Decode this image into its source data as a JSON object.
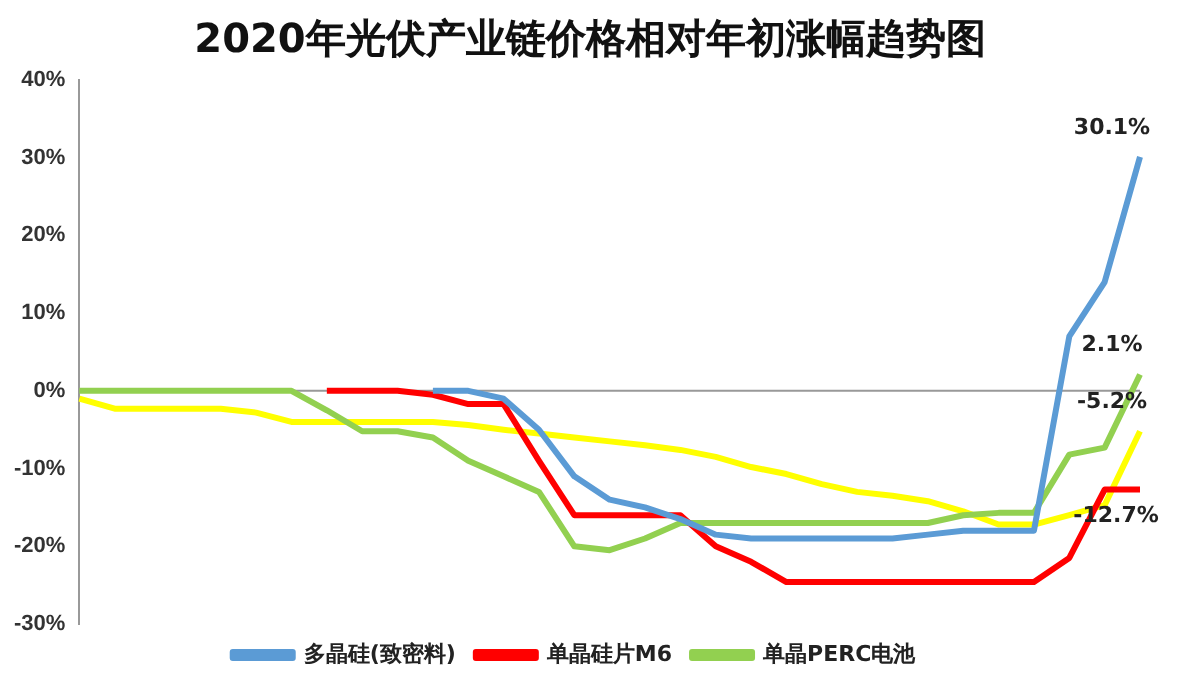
{
  "chart_data": {
    "type": "line",
    "title": "2020年光伏产业链价格相对年初涨幅趋势图",
    "categories": [
      null,
      null,
      null,
      null,
      null,
      null,
      null,
      null,
      null,
      null,
      null,
      null,
      null,
      null,
      null,
      null,
      null,
      null,
      null,
      null,
      null,
      null,
      null,
      null,
      null,
      null,
      null,
      null,
      null,
      null,
      null
    ],
    "series": [
      {
        "name": "多晶硅(致密料)",
        "color": "#5b9bd5",
        "values": [
          null,
          null,
          null,
          null,
          null,
          null,
          null,
          null,
          null,
          null,
          0,
          0,
          -1,
          -5,
          -11,
          -14,
          -15,
          -16.5,
          -18.5,
          -19,
          -19,
          -19,
          -19,
          -19,
          -18.5,
          -18,
          -18,
          -18,
          7,
          14,
          30.1
        ],
        "value_labels": [
          null,
          null,
          null,
          null,
          null,
          null,
          null,
          null,
          null,
          null,
          null,
          null,
          null,
          null,
          null,
          null,
          null,
          null,
          null,
          null,
          null,
          null,
          null,
          null,
          null,
          null,
          null,
          null,
          null,
          null,
          "30.1%"
        ]
      },
      {
        "name": "单晶硅片M6",
        "color": "#ff0000",
        "values": [
          null,
          null,
          null,
          null,
          null,
          null,
          null,
          0,
          0,
          0,
          -0.5,
          -1.7,
          -1.7,
          -9,
          -16,
          -16,
          -16,
          -16,
          -20,
          -22,
          -24.6,
          -24.6,
          -24.6,
          -24.6,
          -24.6,
          -24.6,
          -24.6,
          -24.6,
          -21.5,
          -12.7,
          -12.7
        ],
        "value_labels": [
          null,
          null,
          null,
          null,
          null,
          null,
          null,
          null,
          null,
          null,
          null,
          null,
          null,
          null,
          null,
          null,
          null,
          null,
          null,
          null,
          null,
          null,
          null,
          null,
          null,
          null,
          null,
          null,
          null,
          null,
          "-12.7%"
        ]
      },
      {
        "name": "单晶PERC电池",
        "color": "#92d050",
        "values": [
          0,
          0,
          0,
          0,
          0,
          0,
          0,
          -2.5,
          -5.2,
          -5.2,
          -6,
          -9,
          -11,
          -13,
          -20,
          -20.5,
          -19,
          -17,
          -17,
          -17,
          -17,
          -17,
          -17,
          -17,
          -17,
          -16,
          -15.7,
          -15.7,
          -8.2,
          -7.3,
          2.1
        ],
        "value_labels": [
          null,
          null,
          null,
          null,
          null,
          null,
          null,
          null,
          null,
          null,
          null,
          null,
          null,
          null,
          null,
          null,
          null,
          null,
          null,
          null,
          null,
          null,
          null,
          null,
          null,
          null,
          null,
          null,
          null,
          null,
          "2.1%"
        ]
      },
      {
        "color": "#ffff00",
        "values": [
          -1,
          -2.3,
          -2.3,
          -2.3,
          -2.3,
          -2.8,
          -4,
          -4,
          -4,
          -4,
          -4,
          -4.4,
          -5,
          -5.5,
          -6,
          -6.5,
          -7,
          -7.6,
          -8.5,
          -9.8,
          -10.7,
          -12,
          -13,
          -13.5,
          -14.2,
          -15.5,
          -17.2,
          -17.2,
          -16,
          -14.7,
          -5.2
        ],
        "value_labels": [
          null,
          null,
          null,
          null,
          null,
          null,
          null,
          null,
          null,
          null,
          null,
          null,
          null,
          null,
          null,
          null,
          null,
          null,
          null,
          null,
          null,
          null,
          null,
          null,
          null,
          null,
          null,
          null,
          null,
          null,
          "-5.2%"
        ]
      }
    ],
    "ylim": [
      -30,
      40
    ],
    "yticks": [
      {
        "value": -30,
        "label": "-30%"
      },
      {
        "value": -20,
        "label": "-20%"
      },
      {
        "value": -10,
        "label": "-10%"
      },
      {
        "value": 0,
        "label": "0%"
      },
      {
        "value": 10,
        "label": "10%"
      },
      {
        "value": 20,
        "label": "20%"
      },
      {
        "value": 30,
        "label": "30%"
      },
      {
        "value": 40,
        "label": "40%"
      }
    ],
    "ref_lines": [
      {
        "axis": "y",
        "value": 0,
        "color": "#999999"
      }
    ],
    "tick_labels": "y",
    "grid": false,
    "legend": "bottom",
    "marker": "none",
    "line_style": "solid"
  }
}
